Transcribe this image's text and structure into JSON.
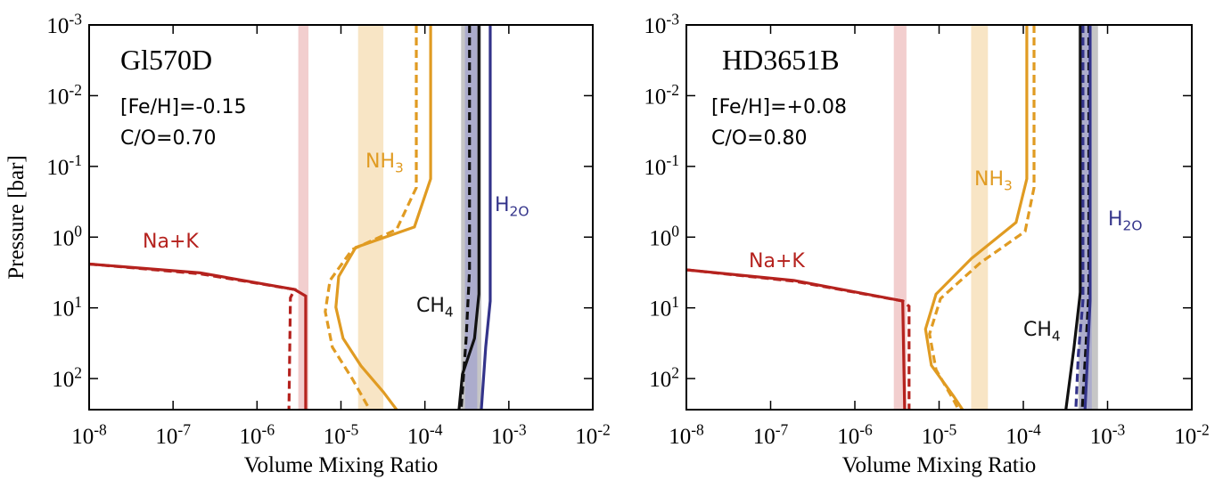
{
  "chart_data": [
    {
      "type": "line",
      "log_x": true,
      "log_y": true,
      "y_inverted": true,
      "xlabel": "Volume Mixing Ratio",
      "ylabel": "Pressure [bar]",
      "annotations": [
        "Gl570D",
        "[Fe/H]=-0.15",
        "C/O=0.70"
      ],
      "xlim": [
        1e-08,
        0.01
      ],
      "xticks": [
        {
          "value": 1e-08,
          "label": "10^-8"
        },
        {
          "value": 1e-07,
          "label": "10^-7"
        },
        {
          "value": 1e-06,
          "label": "10^-6"
        },
        {
          "value": 1e-05,
          "label": "10^-5"
        },
        {
          "value": 0.0001,
          "label": "10^-4"
        },
        {
          "value": 0.001,
          "label": "10^-3"
        },
        {
          "value": 0.01,
          "label": "10^-2"
        }
      ],
      "ylim": [
        0.001,
        275
      ],
      "yticks": [
        {
          "value": 0.001,
          "label": "10^-3"
        },
        {
          "value": 0.01,
          "label": "10^-2"
        },
        {
          "value": 0.1,
          "label": "10^-1"
        },
        {
          "value": 1,
          "label": "10^0"
        },
        {
          "value": 10,
          "label": "10^1"
        },
        {
          "value": 100,
          "label": "10^2"
        }
      ],
      "series": [
        {
          "name": "Na+K",
          "color": "#b5221e",
          "band": [
            3.1e-06,
            4.1e-06
          ],
          "band_color": "#f0c6c6",
          "lines": [
            {
              "style": "solid",
              "x": [
                1e-08,
                2.1e-07,
                2.8e-06,
                3.8e-06,
                3.8e-06
              ],
              "y": [
                2.4,
                3.2,
                5.5,
                6.8,
                275
              ]
            },
            {
              "style": "dashed",
              "x": [
                1e-08,
                2.1e-07,
                2.8e-06,
                2.5e-06,
                2.4e-06
              ],
              "y": [
                2.4,
                3.3,
                5.5,
                7.2,
                275
              ]
            }
          ]
        },
        {
          "name": "NH_3",
          "color": "#e09b22",
          "band": [
            1.6e-05,
            3.2e-05
          ],
          "band_color": "#f7e0bb",
          "lines": [
            {
              "style": "solid",
              "x": [
                0.000117,
                0.000117,
                7.5e-05,
                1.5e-05,
                9.4e-06,
                8.7e-06,
                1.06e-05,
                1.73e-05,
                3.2e-05,
                4.6e-05
              ],
              "y": [
                0.001,
                0.15,
                0.72,
                1.4,
                3.6,
                9.8,
                27,
                66,
                155,
                275
              ]
            },
            {
              "style": "dashed",
              "x": [
                7.9e-05,
                7.9e-05,
                4.6e-05,
                1.36e-05,
                7.4e-06,
                6.5e-06,
                7.9e-06,
                1.36e-05,
                2.2e-05
              ],
              "y": [
                0.001,
                0.2,
                0.78,
                1.5,
                4.1,
                11.3,
                36,
                100,
                275
              ]
            }
          ]
        },
        {
          "name": "CH_4",
          "color": "#111111",
          "band": [
            0.00027,
            0.00047
          ],
          "band_color": "#bcbcbc",
          "lines": [
            {
              "style": "solid",
              "x": [
                0.00044,
                0.00044,
                0.00039,
                0.00028,
                0.000255
              ],
              "y": [
                0.001,
                6.4,
                27,
                87,
                275
              ]
            },
            {
              "style": "dashed",
              "x": [
                0.00034,
                0.00034,
                0.00031,
                0.00027
              ],
              "y": [
                0.001,
                3,
                27,
                275
              ]
            }
          ]
        },
        {
          "name": "H_2O",
          "color": "#33338a",
          "band": [
            0.0003,
            0.00042
          ],
          "band_color": "#a7a7cc",
          "lines": [
            {
              "style": "solid",
              "x": [
                0.0006,
                0.0006,
                0.00053,
                0.00047
              ],
              "y": [
                0.001,
                8,
                36,
                275
              ]
            }
          ]
        }
      ]
    },
    {
      "type": "line",
      "log_x": true,
      "log_y": true,
      "y_inverted": true,
      "xlabel": "Volume Mixing Ratio",
      "annotations": [
        "HD3651B",
        "[Fe/H]=+0.08",
        "C/O=0.80"
      ],
      "xlim": [
        1e-08,
        0.01
      ],
      "xticks": [
        {
          "value": 1e-08,
          "label": "10^-8"
        },
        {
          "value": 1e-07,
          "label": "10^-7"
        },
        {
          "value": 1e-06,
          "label": "10^-6"
        },
        {
          "value": 1e-05,
          "label": "10^-5"
        },
        {
          "value": 0.0001,
          "label": "10^-4"
        },
        {
          "value": 0.001,
          "label": "10^-3"
        },
        {
          "value": 0.01,
          "label": "10^-2"
        }
      ],
      "ylim": [
        0.001,
        275
      ],
      "yticks": [
        {
          "value": 0.001,
          "label": "10^-3"
        },
        {
          "value": 0.01,
          "label": "10^-2"
        },
        {
          "value": 0.1,
          "label": "10^-1"
        },
        {
          "value": 1,
          "label": "10^0"
        },
        {
          "value": 10,
          "label": "10^1"
        },
        {
          "value": 100,
          "label": "10^2"
        }
      ],
      "series": [
        {
          "name": "Na+K",
          "color": "#b5221e",
          "band": [
            2.9e-06,
            4.1e-06
          ],
          "band_color": "#f0c6c6",
          "lines": [
            {
              "style": "solid",
              "x": [
                1e-08,
                1.9e-07,
                3.7e-06,
                3.9e-06
              ],
              "y": [
                2.9,
                4.1,
                8.0,
                275
              ]
            },
            {
              "style": "dashed",
              "x": [
                1e-08,
                1.9e-07,
                3.7e-06,
                4.4e-06,
                4.4e-06
              ],
              "y": [
                2.9,
                4.2,
                8.0,
                9.5,
                275
              ]
            }
          ]
        },
        {
          "name": "NH_3",
          "color": "#e09b22",
          "band": [
            2.4e-05,
            3.8e-05
          ],
          "band_color": "#f7e0bb",
          "lines": [
            {
              "style": "solid",
              "x": [
                0.00011,
                0.00011,
                8.2e-05,
                2.43e-05,
                9.2e-06,
                6.9e-06,
                8.1e-06,
                1.5e-05,
                1.9e-05
              ],
              "y": [
                0.001,
                0.15,
                0.62,
                2.0,
                6.4,
                20,
                65,
                180,
                275
              ]
            },
            {
              "style": "dashed",
              "x": [
                0.000134,
                0.000134,
                0.000105,
                3.1e-05,
                1.04e-05,
                7.7e-06,
                9.2e-06,
                1.5e-05,
                1.7e-05
              ],
              "y": [
                0.001,
                0.2,
                0.83,
                2.3,
                7.4,
                23.5,
                75,
                205,
                275
              ]
            }
          ]
        },
        {
          "name": "CH_4",
          "color": "#111111",
          "band": [
            0.00045,
            0.00077
          ],
          "band_color": "#bcbcbc",
          "lines": [
            {
              "style": "solid",
              "x": [
                0.000475,
                0.000475,
                0.0004,
                0.00032
              ],
              "y": [
                0.001,
                6,
                36,
                275
              ]
            },
            {
              "style": "dashed",
              "x": [
                0.0006,
                0.0006,
                0.00055,
                0.0005
              ],
              "y": [
                0.001,
                6,
                40,
                275
              ]
            }
          ]
        },
        {
          "name": "H_2O",
          "color": "#33338a",
          "band": [
            0.00047,
            0.00065
          ],
          "band_color": "#a7a7cc",
          "lines": [
            {
              "style": "solid",
              "x": [
                0.00062,
                0.00062,
                0.00058,
                0.00054
              ],
              "y": [
                0.001,
                8,
                45,
                275
              ]
            },
            {
              "style": "dashed",
              "x": [
                0.00051,
                0.00051,
                0.00045,
                0.00042
              ],
              "y": [
                0.001,
                8,
                45,
                275
              ]
            }
          ]
        }
      ]
    }
  ]
}
